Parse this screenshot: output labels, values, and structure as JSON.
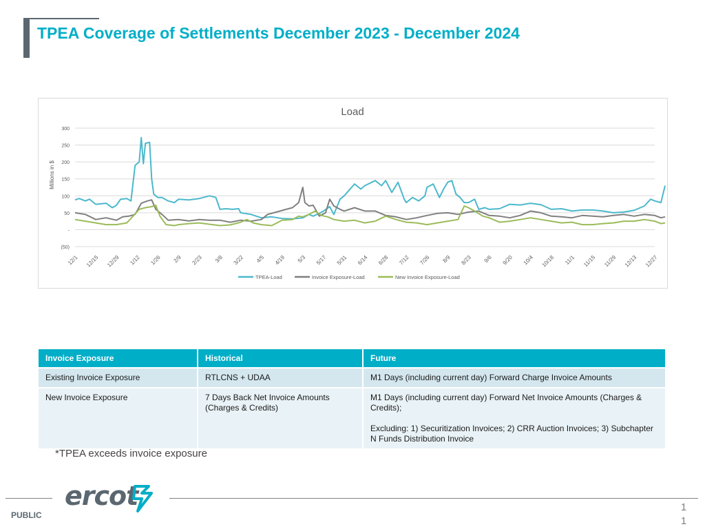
{
  "slide": {
    "title": "TPEA Coverage of Settlements December 2023 - December 2024",
    "footnote": "*TPEA exceeds invoice exposure",
    "classification": "PUBLIC",
    "page_number": "1\n1",
    "logo_text": "ercot"
  },
  "colors": {
    "accent": "#00aec7",
    "tpea": "#4bb8cc",
    "invoice": "#7f7f7f",
    "new_invoice": "#9bbb59"
  },
  "chart_data": {
    "type": "line",
    "title": "Load",
    "xlabel": "",
    "ylabel": "Millions in $",
    "ylim": [
      -50,
      300
    ],
    "yticks": [
      -50,
      0,
      50,
      100,
      150,
      200,
      250,
      300
    ],
    "ytick_labels": [
      "(50)",
      "-",
      "50",
      "100",
      "150",
      "200",
      "250",
      "300"
    ],
    "grid": true,
    "legend": "bottom",
    "categories": [
      "12/1",
      "12/15",
      "12/29",
      "1/12",
      "1/26",
      "2/9",
      "2/23",
      "3/8",
      "3/22",
      "4/5",
      "4/19",
      "5/3",
      "5/17",
      "5/31",
      "6/14",
      "6/28",
      "7/12",
      "7/26",
      "8/9",
      "8/23",
      "9/6",
      "9/20",
      "10/4",
      "10/18",
      "11/1",
      "11/15",
      "11/29",
      "12/13",
      "12/27"
    ],
    "series": [
      {
        "name": "TPEA-Load",
        "color": "#4bb8cc",
        "points": [
          [
            0,
            88
          ],
          [
            0.2,
            92
          ],
          [
            0.5,
            85
          ],
          [
            0.7,
            90
          ],
          [
            1,
            75
          ],
          [
            1.5,
            78
          ],
          [
            1.8,
            65
          ],
          [
            2,
            72
          ],
          [
            2.2,
            90
          ],
          [
            2.5,
            92
          ],
          [
            2.7,
            85
          ],
          [
            2.9,
            190
          ],
          [
            3.1,
            200
          ],
          [
            3.2,
            272
          ],
          [
            3.3,
            195
          ],
          [
            3.4,
            255
          ],
          [
            3.6,
            258
          ],
          [
            3.7,
            150
          ],
          [
            3.8,
            105
          ],
          [
            4,
            95
          ],
          [
            4.2,
            95
          ],
          [
            4.5,
            85
          ],
          [
            4.8,
            80
          ],
          [
            5,
            90
          ],
          [
            5.5,
            88
          ],
          [
            6,
            92
          ],
          [
            6.5,
            100
          ],
          [
            6.8,
            95
          ],
          [
            7,
            60
          ],
          [
            7.3,
            62
          ],
          [
            7.6,
            60
          ],
          [
            7.9,
            62
          ],
          [
            8,
            50
          ],
          [
            8.5,
            45
          ],
          [
            9,
            35
          ],
          [
            9.5,
            38
          ],
          [
            10,
            33
          ],
          [
            10.5,
            32
          ],
          [
            11,
            35
          ],
          [
            11.3,
            45
          ],
          [
            11.5,
            40
          ],
          [
            11.8,
            48
          ],
          [
            12,
            55
          ],
          [
            12.3,
            68
          ],
          [
            12.5,
            45
          ],
          [
            12.8,
            90
          ],
          [
            13,
            100
          ],
          [
            13.5,
            135
          ],
          [
            13.8,
            120
          ],
          [
            14,
            130
          ],
          [
            14.5,
            145
          ],
          [
            14.8,
            130
          ],
          [
            15,
            145
          ],
          [
            15.3,
            110
          ],
          [
            15.6,
            140
          ],
          [
            15.9,
            90
          ],
          [
            16,
            80
          ],
          [
            16.3,
            95
          ],
          [
            16.6,
            85
          ],
          [
            16.9,
            100
          ],
          [
            17,
            125
          ],
          [
            17.3,
            135
          ],
          [
            17.6,
            95
          ],
          [
            17.8,
            120
          ],
          [
            18,
            140
          ],
          [
            18.2,
            145
          ],
          [
            18.4,
            105
          ],
          [
            18.6,
            95
          ],
          [
            18.8,
            80
          ],
          [
            19,
            80
          ],
          [
            19.3,
            90
          ],
          [
            19.5,
            60
          ],
          [
            19.8,
            65
          ],
          [
            20,
            60
          ],
          [
            20.5,
            62
          ],
          [
            21,
            75
          ],
          [
            21.5,
            73
          ],
          [
            22,
            78
          ],
          [
            22.5,
            74
          ],
          [
            23,
            60
          ],
          [
            23.5,
            62
          ],
          [
            24,
            55
          ],
          [
            24.5,
            58
          ],
          [
            25,
            58
          ],
          [
            25.5,
            55
          ],
          [
            26,
            50
          ],
          [
            26.5,
            52
          ],
          [
            27,
            57
          ],
          [
            27.5,
            70
          ],
          [
            27.8,
            90
          ],
          [
            28,
            85
          ],
          [
            28.3,
            80
          ],
          [
            28.5,
            130
          ]
        ]
      },
      {
        "name": "Invoice Exposure-Load",
        "color": "#7f7f7f",
        "points": [
          [
            0,
            50
          ],
          [
            0.5,
            45
          ],
          [
            1,
            30
          ],
          [
            1.5,
            35
          ],
          [
            2,
            28
          ],
          [
            2.3,
            38
          ],
          [
            2.6,
            40
          ],
          [
            2.9,
            45
          ],
          [
            3.2,
            78
          ],
          [
            3.5,
            85
          ],
          [
            3.7,
            88
          ],
          [
            3.9,
            60
          ],
          [
            4.2,
            45
          ],
          [
            4.5,
            28
          ],
          [
            5,
            30
          ],
          [
            5.5,
            26
          ],
          [
            6,
            30
          ],
          [
            6.5,
            28
          ],
          [
            7,
            28
          ],
          [
            7.5,
            22
          ],
          [
            8,
            28
          ],
          [
            8.5,
            25
          ],
          [
            9,
            30
          ],
          [
            9.3,
            45
          ],
          [
            9.6,
            50
          ],
          [
            9.9,
            55
          ],
          [
            10.2,
            60
          ],
          [
            10.5,
            65
          ],
          [
            10.8,
            80
          ],
          [
            11,
            125
          ],
          [
            11.1,
            80
          ],
          [
            11.3,
            70
          ],
          [
            11.5,
            72
          ],
          [
            11.8,
            40
          ],
          [
            12.1,
            50
          ],
          [
            12.3,
            90
          ],
          [
            12.5,
            70
          ],
          [
            12.8,
            60
          ],
          [
            13,
            55
          ],
          [
            13.5,
            65
          ],
          [
            14,
            55
          ],
          [
            14.5,
            55
          ],
          [
            15,
            42
          ],
          [
            15.5,
            38
          ],
          [
            16,
            30
          ],
          [
            16.5,
            35
          ],
          [
            17,
            42
          ],
          [
            17.5,
            48
          ],
          [
            18,
            50
          ],
          [
            18.5,
            45
          ],
          [
            19,
            52
          ],
          [
            19.5,
            55
          ],
          [
            20,
            42
          ],
          [
            20.5,
            40
          ],
          [
            21,
            35
          ],
          [
            21.5,
            42
          ],
          [
            22,
            55
          ],
          [
            22.5,
            50
          ],
          [
            23,
            40
          ],
          [
            23.5,
            38
          ],
          [
            24,
            35
          ],
          [
            24.5,
            42
          ],
          [
            25,
            40
          ],
          [
            25.5,
            38
          ],
          [
            26,
            42
          ],
          [
            26.5,
            45
          ],
          [
            27,
            40
          ],
          [
            27.5,
            45
          ],
          [
            28,
            42
          ],
          [
            28.3,
            35
          ],
          [
            28.5,
            38
          ]
        ]
      },
      {
        "name": "New Invoice Exposure-Load",
        "color": "#9bbb59",
        "points": [
          [
            0,
            30
          ],
          [
            0.5,
            25
          ],
          [
            1,
            20
          ],
          [
            1.5,
            15
          ],
          [
            2,
            15
          ],
          [
            2.5,
            20
          ],
          [
            2.8,
            40
          ],
          [
            3.1,
            60
          ],
          [
            3.4,
            65
          ],
          [
            3.7,
            68
          ],
          [
            3.9,
            72
          ],
          [
            4.1,
            40
          ],
          [
            4.4,
            15
          ],
          [
            4.8,
            12
          ],
          [
            5,
            15
          ],
          [
            5.5,
            18
          ],
          [
            6,
            20
          ],
          [
            6.5,
            16
          ],
          [
            7,
            12
          ],
          [
            7.5,
            14
          ],
          [
            8,
            22
          ],
          [
            8.3,
            30
          ],
          [
            8.6,
            20
          ],
          [
            9,
            15
          ],
          [
            9.5,
            12
          ],
          [
            10,
            28
          ],
          [
            10.5,
            30
          ],
          [
            10.8,
            40
          ],
          [
            11,
            38
          ],
          [
            11.3,
            45
          ],
          [
            11.6,
            55
          ],
          [
            11.9,
            42
          ],
          [
            12.2,
            38
          ],
          [
            12.5,
            30
          ],
          [
            13,
            25
          ],
          [
            13.5,
            28
          ],
          [
            14,
            20
          ],
          [
            14.5,
            25
          ],
          [
            15,
            40
          ],
          [
            15.5,
            30
          ],
          [
            16,
            22
          ],
          [
            16.5,
            20
          ],
          [
            17,
            15
          ],
          [
            17.5,
            20
          ],
          [
            18,
            25
          ],
          [
            18.5,
            30
          ],
          [
            18.8,
            70
          ],
          [
            19,
            65
          ],
          [
            19.3,
            55
          ],
          [
            19.7,
            40
          ],
          [
            20,
            35
          ],
          [
            20.5,
            22
          ],
          [
            21,
            25
          ],
          [
            21.5,
            30
          ],
          [
            22,
            35
          ],
          [
            22.5,
            30
          ],
          [
            23,
            25
          ],
          [
            23.5,
            20
          ],
          [
            24,
            22
          ],
          [
            24.5,
            15
          ],
          [
            25,
            15
          ],
          [
            25.5,
            18
          ],
          [
            26,
            20
          ],
          [
            26.5,
            25
          ],
          [
            27,
            25
          ],
          [
            27.5,
            30
          ],
          [
            28,
            25
          ],
          [
            28.3,
            18
          ],
          [
            28.5,
            20
          ]
        ]
      }
    ]
  },
  "table": {
    "headers": [
      "Invoice Exposure",
      "Historical",
      "Future"
    ],
    "rows": [
      [
        "Existing Invoice Exposure",
        "RTLCNS + UDAA",
        "M1 Days (including current day)  Forward Charge Invoice Amounts"
      ],
      [
        "New Invoice Exposure",
        "7 Days Back Net Invoice Amounts (Charges & Credits)",
        "M1 Days (including current day)  Forward Net Invoice Amounts (Charges & Credits);\n\nExcluding: 1) Securitization Invoices; 2) CRR Auction Invoices; 3) Subchapter N Funds Distribution Invoice"
      ]
    ]
  }
}
